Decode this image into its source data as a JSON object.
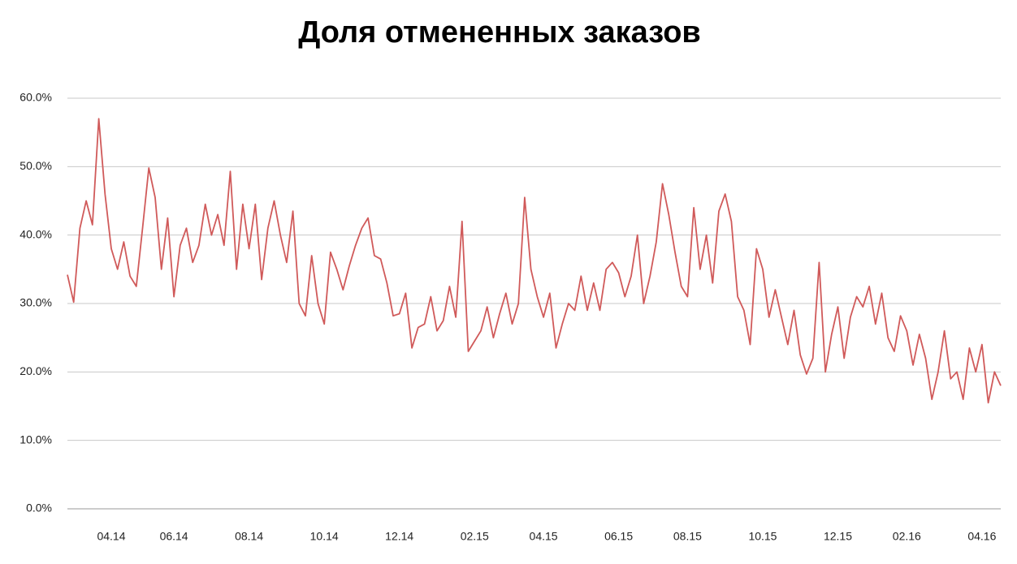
{
  "chart_data": {
    "type": "line",
    "title": "Доля отмененных заказов",
    "categories": [
      null,
      null,
      null,
      null,
      null,
      null,
      null,
      "04.14",
      null,
      null,
      null,
      null,
      null,
      null,
      null,
      null,
      null,
      "06.14",
      null,
      null,
      null,
      null,
      null,
      null,
      null,
      null,
      null,
      null,
      null,
      "08.14",
      null,
      null,
      null,
      null,
      null,
      null,
      null,
      null,
      null,
      null,
      null,
      "10.14",
      null,
      null,
      null,
      null,
      null,
      null,
      null,
      null,
      null,
      null,
      null,
      "12.14",
      null,
      null,
      null,
      null,
      null,
      null,
      null,
      null,
      null,
      null,
      null,
      "02.15",
      null,
      null,
      null,
      null,
      null,
      null,
      null,
      null,
      null,
      null,
      "04.15",
      null,
      null,
      null,
      null,
      null,
      null,
      null,
      null,
      null,
      null,
      null,
      "06.15",
      null,
      null,
      null,
      null,
      null,
      null,
      null,
      null,
      null,
      null,
      "08.15",
      null,
      null,
      null,
      null,
      null,
      null,
      null,
      null,
      null,
      null,
      null,
      "10.15",
      null,
      null,
      null,
      null,
      null,
      null,
      null,
      null,
      null,
      null,
      null,
      "12.15",
      null,
      null,
      null,
      null,
      null,
      null,
      null,
      null,
      null,
      null,
      "02.16",
      null,
      null,
      null,
      null,
      null,
      null,
      null,
      null,
      null,
      null,
      null,
      "04.16",
      null,
      null,
      null
    ],
    "series": [
      {
        "color": "#d05a5a",
        "values": [
          34.2,
          30.2,
          41,
          45,
          41.5,
          57,
          46,
          38,
          35,
          39,
          34,
          32.5,
          41,
          49.8,
          45.5,
          35,
          42.5,
          31,
          38.5,
          41,
          36,
          38.5,
          44.5,
          40,
          43,
          38.5,
          49.3,
          35,
          44.5,
          38,
          44.5,
          33.5,
          41,
          45,
          40,
          36,
          43.5,
          30,
          28.2,
          37,
          30,
          27,
          37.5,
          35,
          32,
          35.5,
          38.5,
          41,
          42.5,
          37,
          36.5,
          33,
          28.2,
          28.5,
          31.5,
          23.5,
          26.5,
          27,
          31,
          26,
          27.5,
          32.5,
          28,
          42,
          23,
          24.5,
          26,
          29.5,
          25,
          28.5,
          31.5,
          27,
          30,
          45.5,
          35,
          31,
          28,
          31.5,
          23.5,
          27,
          30,
          29,
          34,
          29,
          33,
          29,
          35,
          36,
          34.5,
          31,
          34,
          40,
          30,
          34,
          39,
          47.5,
          43,
          37.5,
          32.5,
          31,
          44,
          35,
          40,
          33,
          43.5,
          46,
          42,
          31,
          29,
          24,
          38,
          35,
          28,
          32,
          28,
          24,
          29,
          22.5,
          19.7,
          22,
          36,
          20,
          25.5,
          29.5,
          22,
          28,
          31,
          29.5,
          32.5,
          27,
          31.5,
          25,
          23,
          28.2,
          26,
          21,
          25.5,
          22,
          16,
          20,
          26,
          19,
          20,
          16,
          23.5,
          20,
          24,
          15.5,
          20,
          18
        ]
      }
    ],
    "ylim": [
      0,
      60
    ],
    "yticks": [
      {
        "value": 0,
        "label": "0.0%"
      },
      {
        "value": 10,
        "label": "10.0%"
      },
      {
        "value": 20,
        "label": "20.0%"
      },
      {
        "value": 30,
        "label": "30.0%"
      },
      {
        "value": 40,
        "label": "40.0%"
      },
      {
        "value": 50,
        "label": "50.0%"
      },
      {
        "value": 60,
        "label": "60.0%"
      }
    ],
    "grid": true
  }
}
